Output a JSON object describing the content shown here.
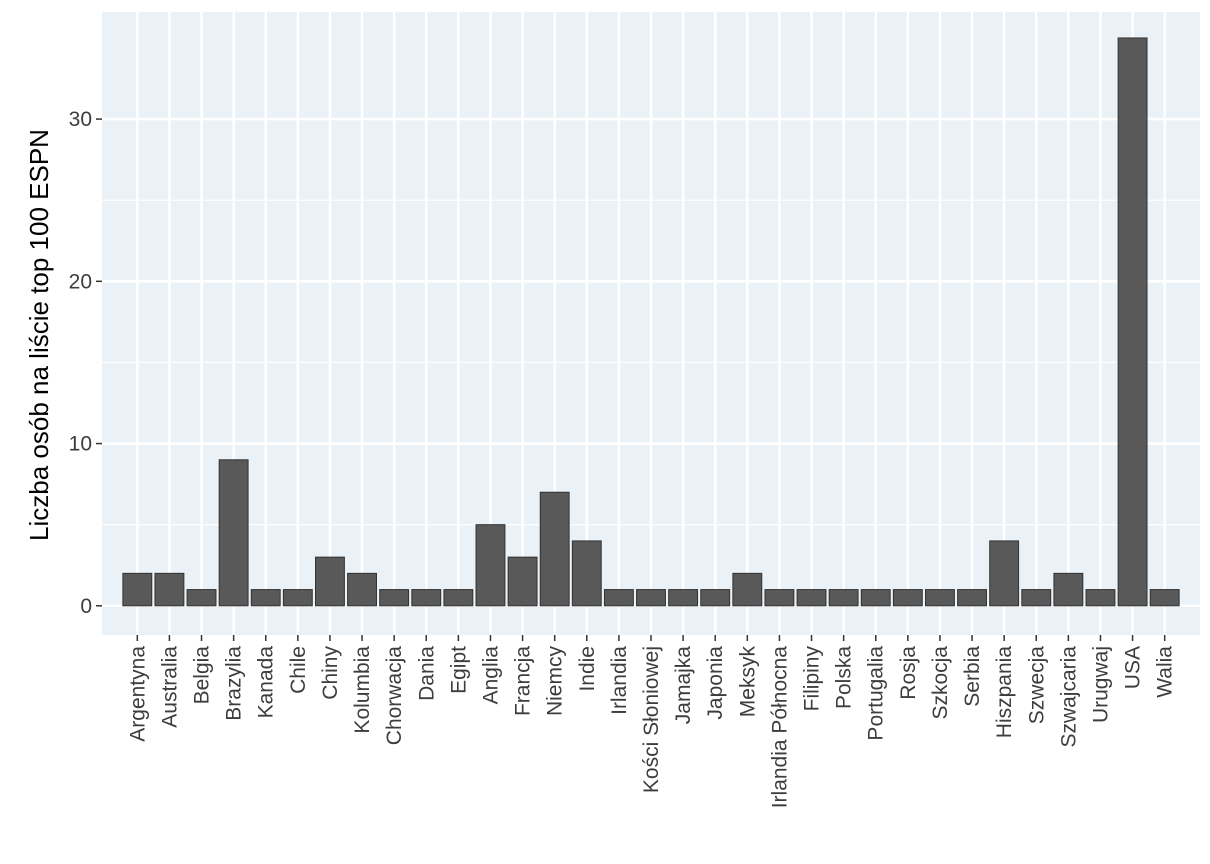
{
  "chart_data": {
    "type": "bar",
    "title": "",
    "xlabel": "",
    "ylabel": "Liczba osób na liście top 100 ESPN",
    "ylim": [
      -1.8,
      36.6
    ],
    "yticks": [
      0,
      10,
      20,
      30
    ],
    "grid": true,
    "colors": {
      "panel_bg": "#ebf2f7",
      "grid": "#ffffff",
      "bar_fill": "#595959",
      "bar_stroke": "#333333",
      "tick_text": "#3d3d3d",
      "axis_title": "#000000"
    },
    "categories": [
      "Argentyna",
      "Australia",
      "Belgia",
      "Brazylia",
      "Kanada",
      "Chile",
      "Chiny",
      "Kolumbia",
      "Chorwacja",
      "Dania",
      "Egipt",
      "Anglia",
      "Francja",
      "Niemcy",
      "Indie",
      "Irlandia",
      "Kości Słoniowej",
      "Jamajka",
      "Japonia",
      "Meksyk",
      "Irlandia Północna",
      "Filipiny",
      "Polska",
      "Portugalia",
      "Rosja",
      "Szkocja",
      "Serbia",
      "Hiszpania",
      "Szwecja",
      "Szwajcaria",
      "Urugwaj",
      "USA",
      "Walia"
    ],
    "values": [
      2,
      2,
      1,
      9,
      1,
      1,
      3,
      2,
      1,
      1,
      1,
      5,
      3,
      7,
      4,
      1,
      1,
      1,
      1,
      2,
      1,
      1,
      1,
      1,
      1,
      1,
      1,
      4,
      1,
      2,
      1,
      35,
      1
    ]
  }
}
